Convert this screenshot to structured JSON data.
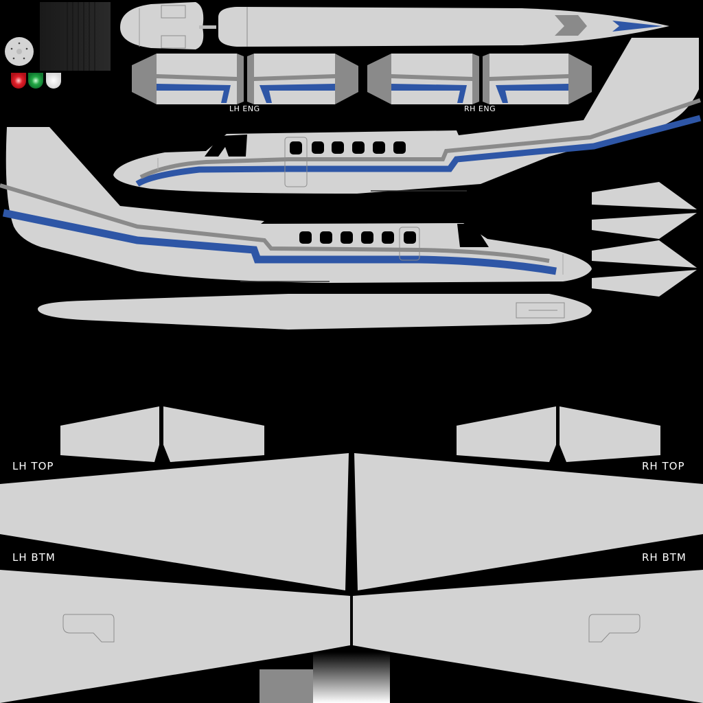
{
  "labels": {
    "lh_eng": "LH ENG",
    "rh_eng": "RH ENG",
    "lh_top": "LH TOP",
    "rh_top": "RH TOP",
    "lh_btm": "LH BTM",
    "rh_btm": "RH BTM"
  },
  "colors": {
    "background": "#000000",
    "panel": "#d3d3d3",
    "stripe_blue": "#2e56a6",
    "stripe_grey": "#8a8a8a",
    "nav_red": "#e0202a",
    "nav_green": "#22a845",
    "nav_white": "#ffffff"
  },
  "icons": [
    "wheel-hub-icon",
    "red-nav-light-icon",
    "green-nav-light-icon",
    "white-strobe-light-icon",
    "chevron-icon"
  ]
}
